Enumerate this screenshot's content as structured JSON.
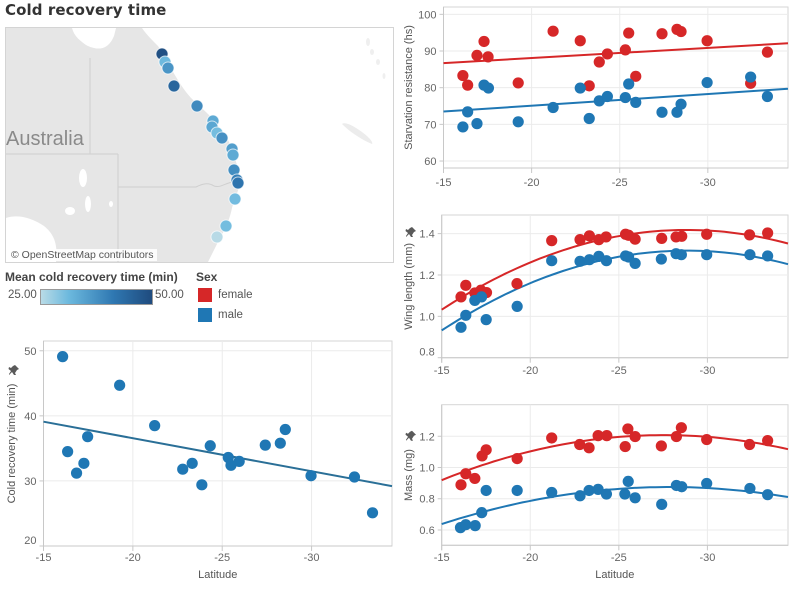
{
  "dashboard": {
    "title": "Cold recovery time"
  },
  "map": {
    "country_label": "Australia",
    "attribution": "© OpenStreetMap contributors",
    "color_range": {
      "min": 25.0,
      "max": 50.0,
      "low_color": "#b9dbe6",
      "mid_color": "#6cb9de",
      "high_color": "#1f4b7e"
    },
    "sites": [
      {
        "value": 49.1
      },
      {
        "value": 31.2
      },
      {
        "value": 36.8
      },
      {
        "value": 44.7
      },
      {
        "value": 38.5
      },
      {
        "value": 33.5
      },
      {
        "value": 34.0
      },
      {
        "value": 30.5
      },
      {
        "value": 37.5
      },
      {
        "value": 35.4
      },
      {
        "value": 33.6
      },
      {
        "value": 37.9
      },
      {
        "value": 40.0
      },
      {
        "value": 42.0
      },
      {
        "value": 30.8
      },
      {
        "value": 30.6
      },
      {
        "value": 25.1
      }
    ]
  },
  "legend": {
    "color_title": "Mean cold recovery time (min)",
    "color_min_label": "25.00",
    "color_max_label": "50.00",
    "sex_title": "Sex",
    "sex_items": [
      {
        "label": "female",
        "color": "#d62728"
      },
      {
        "label": "male",
        "color": "#1f77b4"
      }
    ]
  },
  "chart_data": [
    {
      "id": "cold-recovery",
      "type": "scatter",
      "title": "",
      "xlabel": "Latitude",
      "ylabel": "Cold recovery time (min)",
      "xlim": [
        -15,
        -34.5
      ],
      "ylim": [
        20,
        51.5
      ],
      "xticks": [
        -15,
        -20,
        -25,
        -30
      ],
      "yticks": [
        20,
        30,
        40,
        50
      ],
      "xtick_labels": [
        "-15",
        "-20",
        "-25",
        "-30"
      ],
      "ytick_labels": [
        "20",
        "30",
        "40",
        "50"
      ],
      "grid": true,
      "pinned": true,
      "series": [
        {
          "name": "male",
          "color": "#1f77b4",
          "x": [
            -16.07,
            -16.35,
            -16.85,
            -17.26,
            -17.47,
            -19.26,
            -21.22,
            -22.79,
            -23.32,
            -23.86,
            -24.33,
            -25.34,
            -25.49,
            -25.95,
            -27.41,
            -28.25,
            -28.53,
            -29.97,
            -32.4,
            -33.41
          ],
          "y": [
            49.1,
            34.5,
            31.2,
            32.7,
            36.8,
            44.7,
            38.5,
            31.8,
            32.7,
            29.4,
            35.4,
            33.6,
            32.4,
            33.0,
            35.5,
            35.8,
            37.9,
            30.8,
            30.6,
            25.1
          ],
          "trend": {
            "type": "linear",
            "x": [
              -15,
              -34.5
            ],
            "y": [
              39.1,
              29.2
            ],
            "color": "#2a6f97"
          }
        }
      ]
    },
    {
      "id": "starvation",
      "type": "scatter",
      "title": "",
      "xlabel": "",
      "ylabel": "Starvation resistance (hs)",
      "xlim": [
        -15,
        -34.55
      ],
      "ylim": [
        58.1,
        102
      ],
      "xticks": [
        -15,
        -20,
        -25,
        -30
      ],
      "yticks": [
        60,
        70,
        80,
        90,
        100
      ],
      "xtick_labels": [
        "-15",
        "-20",
        "-25",
        "-30"
      ],
      "ytick_labels": [
        "60",
        "70",
        "80",
        "90",
        "100"
      ],
      "grid": true,
      "pinned": false,
      "series": [
        {
          "name": "female",
          "color": "#d62728",
          "x": [
            -16.1,
            -16.37,
            -16.9,
            -17.3,
            -17.53,
            -19.24,
            -21.22,
            -22.76,
            -23.27,
            -23.84,
            -24.3,
            -25.32,
            -25.51,
            -25.91,
            -27.4,
            -28.25,
            -28.48,
            -29.96,
            -32.43,
            -33.38
          ],
          "y": [
            83.3,
            80.7,
            88.8,
            92.6,
            88.4,
            81.3,
            95.4,
            92.8,
            80.5,
            87.0,
            89.2,
            90.3,
            94.9,
            83.1,
            94.7,
            95.9,
            95.3,
            92.8,
            81.2,
            89.7
          ],
          "trend": {
            "type": "linear",
            "x": [
              -15,
              -34.55
            ],
            "y": [
              86.7,
              92.1
            ],
            "color": "#d62728"
          }
        },
        {
          "name": "male",
          "color": "#1f77b4",
          "x": [
            -16.1,
            -16.37,
            -16.9,
            -17.3,
            -17.55,
            -19.24,
            -21.22,
            -22.76,
            -23.27,
            -23.84,
            -24.3,
            -25.32,
            -25.51,
            -25.91,
            -27.4,
            -28.25,
            -28.48,
            -29.96,
            -32.43,
            -33.38
          ],
          "y": [
            69.3,
            73.4,
            70.2,
            80.7,
            79.9,
            70.7,
            74.6,
            79.9,
            71.6,
            76.4,
            77.6,
            77.3,
            81.0,
            76.0,
            73.3,
            73.3,
            75.5,
            81.4,
            82.9,
            77.6
          ],
          "trend": {
            "type": "linear",
            "x": [
              -15,
              -34.55
            ],
            "y": [
              73.5,
              79.7
            ],
            "color": "#1f77b4"
          }
        }
      ]
    },
    {
      "id": "wing-length",
      "type": "scatter",
      "title": "",
      "xlabel": "",
      "ylabel": "Wing length (mm)",
      "xlim": [
        -15,
        -34.55
      ],
      "ylim": [
        0.8,
        1.49
      ],
      "xticks": [
        -15,
        -20,
        -25,
        -30
      ],
      "yticks": [
        0.8,
        1.0,
        1.2,
        1.4
      ],
      "xtick_labels": [
        "-15",
        "-20",
        "-25",
        "-30"
      ],
      "ytick_labels": [
        "0.8",
        "1.0",
        "1.2",
        "1.4"
      ],
      "grid": true,
      "pinned": true,
      "series": [
        {
          "name": "female",
          "color": "#d62728",
          "x": [
            -16.09,
            -16.36,
            -16.87,
            -17.21,
            -17.53,
            -19.25,
            -21.21,
            -22.81,
            -23.34,
            -23.87,
            -24.28,
            -25.38,
            -25.55,
            -25.92,
            -27.42,
            -28.23,
            -28.55,
            -29.96,
            -32.38,
            -33.4
          ],
          "y": [
            1.094,
            1.15,
            1.113,
            1.126,
            1.115,
            1.158,
            1.366,
            1.371,
            1.389,
            1.371,
            1.384,
            1.397,
            1.392,
            1.373,
            1.377,
            1.384,
            1.387,
            1.397,
            1.394,
            1.403
          ],
          "trend": {
            "type": "quadratic",
            "x": [
              -15,
              -30,
              -34.55
            ],
            "y": [
              1.032,
              1.415,
              1.352
            ],
            "color": "#d62728"
          }
        },
        {
          "name": "male",
          "color": "#1f77b4",
          "x": [
            -16.09,
            -16.36,
            -16.87,
            -17.25,
            -17.51,
            -19.26,
            -21.21,
            -22.81,
            -23.34,
            -23.87,
            -24.3,
            -25.38,
            -25.55,
            -25.92,
            -27.4,
            -28.23,
            -28.53,
            -29.96,
            -32.4,
            -33.4
          ],
          "y": [
            0.947,
            1.005,
            1.077,
            1.094,
            0.984,
            1.048,
            1.269,
            1.266,
            1.274,
            1.29,
            1.269,
            1.292,
            1.287,
            1.256,
            1.277,
            1.303,
            1.298,
            1.298,
            1.298,
            1.292
          ],
          "trend": {
            "type": "quadratic",
            "x": [
              -15,
              -30,
              -34.55
            ],
            "y": [
              0.932,
              1.315,
              1.252
            ],
            "color": "#1f77b4"
          }
        }
      ]
    },
    {
      "id": "mass",
      "type": "scatter",
      "title": "",
      "xlabel": "Latitude",
      "ylabel": "Mass (mg)",
      "xlim": [
        -15,
        -34.55
      ],
      "ylim": [
        0.502,
        1.402
      ],
      "xticks": [
        -15,
        -20,
        -25,
        -30
      ],
      "yticks": [
        0.6,
        0.8,
        1.0,
        1.2
      ],
      "xtick_labels": [
        "-15",
        "-20",
        "-25",
        "-30"
      ],
      "ytick_labels": [
        "0.6",
        "0.8",
        "1.0",
        "1.2"
      ],
      "grid": true,
      "pinned": true,
      "series": [
        {
          "name": "female",
          "color": "#d62728",
          "x": [
            -16.09,
            -16.36,
            -16.87,
            -17.28,
            -17.51,
            -19.26,
            -21.21,
            -22.79,
            -23.32,
            -23.83,
            -24.32,
            -25.36,
            -25.51,
            -25.92,
            -27.4,
            -28.25,
            -28.53,
            -29.96,
            -32.38,
            -33.4
          ],
          "y": [
            0.889,
            0.96,
            0.93,
            1.074,
            1.113,
            1.057,
            1.189,
            1.147,
            1.126,
            1.204,
            1.204,
            1.134,
            1.247,
            1.198,
            1.138,
            1.198,
            1.255,
            1.179,
            1.147,
            1.172
          ],
          "trend": {
            "type": "quadratic",
            "x": [
              -15,
              -28,
              -34.55
            ],
            "y": [
              0.919,
              1.207,
              1.117
            ],
            "color": "#d62728"
          }
        },
        {
          "name": "male",
          "color": "#1f77b4",
          "x": [
            -16.06,
            -16.36,
            -16.89,
            -17.26,
            -17.51,
            -19.26,
            -21.21,
            -22.81,
            -23.32,
            -23.83,
            -24.3,
            -25.34,
            -25.53,
            -25.92,
            -27.42,
            -28.25,
            -28.55,
            -29.96,
            -32.4,
            -33.4
          ],
          "y": [
            0.615,
            0.634,
            0.628,
            0.711,
            0.853,
            0.853,
            0.84,
            0.819,
            0.853,
            0.86,
            0.83,
            0.83,
            0.911,
            0.806,
            0.764,
            0.885,
            0.877,
            0.898,
            0.866,
            0.826
          ],
          "trend": {
            "type": "quadratic",
            "x": [
              -15,
              -28,
              -34.55
            ],
            "y": [
              0.638,
              0.875,
              0.811
            ],
            "color": "#1f77b4"
          }
        }
      ]
    }
  ]
}
